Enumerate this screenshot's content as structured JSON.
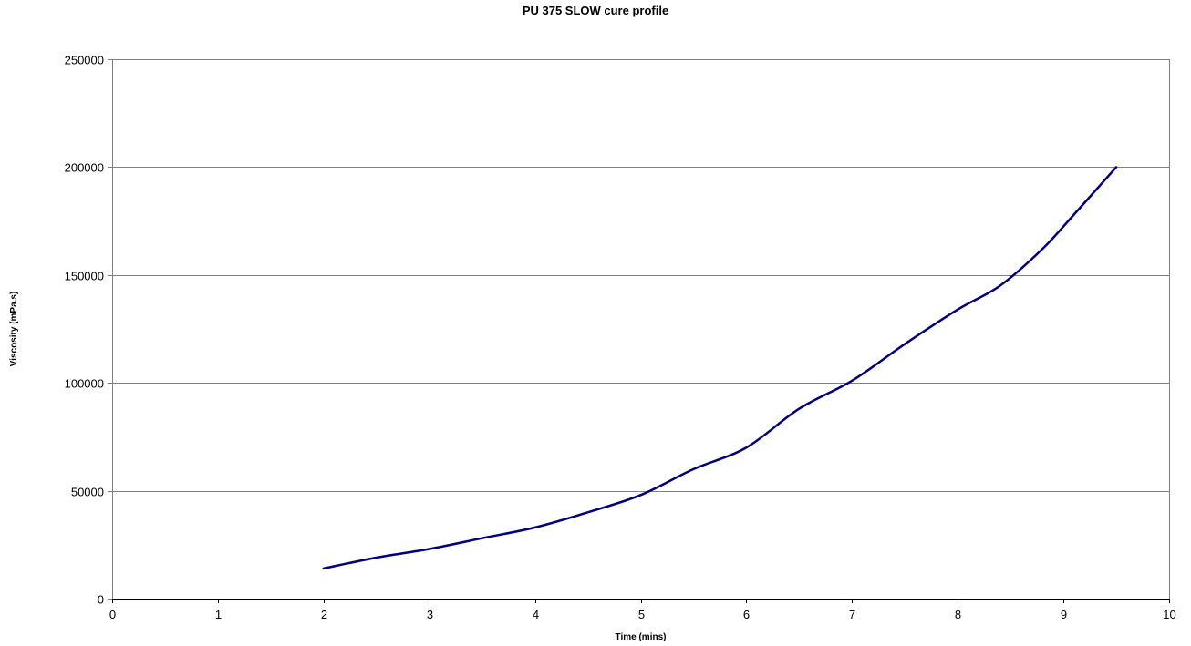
{
  "chart_data": {
    "type": "line",
    "title": "PU 375 SLOW cure profile",
    "xlabel": "Time (mins)",
    "ylabel": "Viscosity (mPa.s)",
    "xlim": [
      0,
      10
    ],
    "ylim": [
      0,
      250000
    ],
    "x_ticks": [
      "0",
      "1",
      "2",
      "3",
      "4",
      "5",
      "6",
      "7",
      "8",
      "9",
      "10"
    ],
    "y_ticks": [
      "0",
      "50000",
      "100000",
      "150000",
      "200000",
      "250000"
    ],
    "grid": "horizontal",
    "legend": "none",
    "series": [
      {
        "color": "#000080",
        "points": [
          [
            2.0,
            14000
          ],
          [
            2.5,
            19000
          ],
          [
            3.0,
            23000
          ],
          [
            3.5,
            28000
          ],
          [
            4.0,
            33000
          ],
          [
            4.5,
            40000
          ],
          [
            5.0,
            48000
          ],
          [
            5.5,
            60000
          ],
          [
            6.0,
            70000
          ],
          [
            6.5,
            88000
          ],
          [
            7.0,
            101000
          ],
          [
            7.5,
            118000
          ],
          [
            8.0,
            134000
          ],
          [
            8.4,
            145000
          ],
          [
            8.8,
            162000
          ],
          [
            9.1,
            178000
          ],
          [
            9.5,
            200000
          ]
        ]
      }
    ]
  }
}
